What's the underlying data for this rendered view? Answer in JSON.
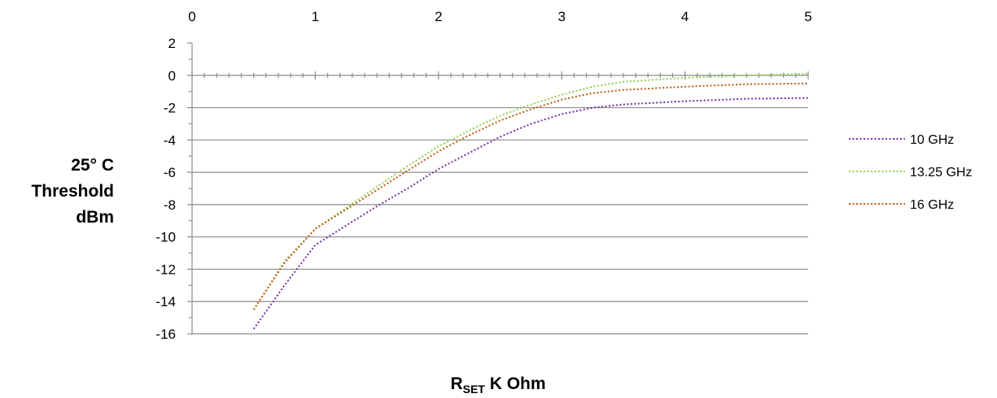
{
  "chart_data": {
    "type": "line",
    "title": "",
    "xlabel": {
      "main": "R",
      "subscript": "SET",
      "suffix": " K Ohm"
    },
    "ylabel": [
      "25° C",
      "Threshold",
      "dBm"
    ],
    "xlim": [
      0,
      5
    ],
    "ylim": [
      -16,
      2
    ],
    "xticks": [
      0,
      1,
      2,
      3,
      4,
      5
    ],
    "yticks": [
      2,
      0,
      -2,
      -4,
      -6,
      -8,
      -10,
      -12,
      -14,
      -16
    ],
    "grid": "horizontal",
    "legend_position": "right",
    "series": [
      {
        "name": "10 GHz",
        "color": "#7030A0",
        "style": "dotted",
        "x": [
          0.5,
          0.75,
          1.0,
          1.25,
          1.5,
          1.75,
          2.0,
          2.25,
          2.5,
          2.75,
          3.0,
          3.25,
          3.5,
          4.0,
          4.5,
          5.0
        ],
        "y": [
          -15.7,
          -13.0,
          -10.5,
          -9.3,
          -8.1,
          -7.0,
          -5.8,
          -4.8,
          -3.8,
          -3.0,
          -2.4,
          -2.0,
          -1.8,
          -1.6,
          -1.45,
          -1.4
        ]
      },
      {
        "name": "13.25 GHz",
        "color": "#92D050",
        "style": "dotted",
        "x": [
          0.5,
          0.75,
          1.0,
          1.25,
          1.5,
          1.75,
          2.0,
          2.25,
          2.5,
          2.75,
          3.0,
          3.25,
          3.5,
          4.0,
          4.5,
          5.0
        ],
        "y": [
          -14.5,
          -11.5,
          -9.5,
          -8.2,
          -6.9,
          -5.6,
          -4.4,
          -3.4,
          -2.5,
          -1.8,
          -1.2,
          -0.7,
          -0.4,
          -0.15,
          0.0,
          0.1
        ]
      },
      {
        "name": "16 GHz",
        "color": "#C05A10",
        "style": "dotted",
        "x": [
          0.5,
          0.75,
          1.0,
          1.25,
          1.5,
          1.75,
          2.0,
          2.25,
          2.5,
          2.75,
          3.0,
          3.25,
          3.5,
          4.0,
          4.5,
          5.0
        ],
        "y": [
          -14.5,
          -11.6,
          -9.5,
          -8.3,
          -7.1,
          -5.9,
          -4.7,
          -3.7,
          -2.8,
          -2.1,
          -1.5,
          -1.1,
          -0.9,
          -0.7,
          -0.55,
          -0.5
        ]
      }
    ]
  }
}
